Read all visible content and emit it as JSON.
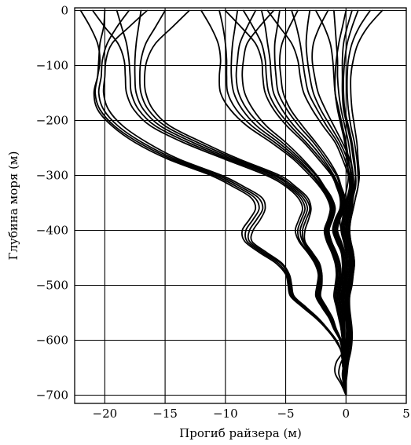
{
  "chart_data": {
    "type": "line",
    "title": "",
    "xlabel": "Прогиб райзера (м)",
    "ylabel": "Глубина моря (м)",
    "xlim": [
      -22.5,
      5
    ],
    "ylim": [
      -715,
      5
    ],
    "grid": true,
    "legend": "none",
    "line_color": "#000000",
    "x_ticks": [
      -20,
      -15,
      -10,
      -5,
      0,
      5
    ],
    "x_tick_labels": [
      "−20",
      "−15",
      "−10",
      "−5",
      "0",
      "5"
    ],
    "y_ticks": [
      0,
      -100,
      -200,
      -300,
      -400,
      -500,
      -600,
      -700
    ],
    "y_tick_labels": [
      "0",
      "−100",
      "−200",
      "−300",
      "−400",
      "−500",
      "−600",
      "−700"
    ],
    "depth_points": [
      0,
      -30,
      -60,
      -90,
      -120,
      -150,
      -180,
      -210,
      -240,
      -270,
      -300,
      -320,
      -340,
      -360,
      -380,
      -400,
      -420,
      -440,
      -460,
      -480,
      -500,
      -520,
      -540,
      -560,
      -580,
      -600,
      -620,
      -640,
      -660,
      -680,
      -700
    ],
    "series": [
      {
        "top_x": -22,
        "values": [
          -22,
          -21.2,
          -20.6,
          -20.4,
          -20.6,
          -20.9,
          -20.6,
          -19.4,
          -17.5,
          -14.8,
          -11.2,
          -9.4,
          -7.9,
          -7.5,
          -8.0,
          -8.6,
          -8.4,
          -7.2,
          -5.8,
          -5.0,
          -4.8,
          -4.6,
          -3.6,
          -2.5,
          -1.6,
          -0.9,
          -0.4,
          -0.3,
          -0.2,
          -0.1,
          0
        ]
      },
      {
        "top_x": -20,
        "values": [
          -20,
          -20.1,
          -20.4,
          -20.5,
          -20.6,
          -20.8,
          -20.4,
          -19.2,
          -17.2,
          -14.5,
          -10.9,
          -9.1,
          -7.6,
          -7.2,
          -7.7,
          -8.3,
          -8.2,
          -7.0,
          -5.6,
          -4.9,
          -4.7,
          -4.5,
          -3.5,
          -2.4,
          -1.6,
          -0.8,
          -0.4,
          -0.3,
          -0.2,
          -0.1,
          0
        ]
      },
      {
        "top_x": -18,
        "values": [
          -18,
          -19.0,
          -19.8,
          -20.2,
          -20.3,
          -20.5,
          -20.1,
          -18.9,
          -16.9,
          -14.2,
          -10.6,
          -8.8,
          -7.3,
          -6.9,
          -7.4,
          -8.0,
          -8.0,
          -6.8,
          -5.4,
          -4.8,
          -4.6,
          -4.4,
          -3.4,
          -2.3,
          -1.5,
          -0.8,
          -0.4,
          -0.3,
          -0.2,
          -0.1,
          0
        ]
      },
      {
        "top_x": -16.5,
        "values": [
          -16.5,
          -18.0,
          -19.4,
          -19.9,
          -20.0,
          -20.1,
          -19.7,
          -18.5,
          -16.5,
          -13.9,
          -10.3,
          -8.5,
          -7.0,
          -6.7,
          -7.1,
          -7.7,
          -7.8,
          -6.6,
          -5.3,
          -4.7,
          -4.5,
          -4.3,
          -3.3,
          -2.3,
          -1.5,
          -0.8,
          -0.4,
          -0.3,
          -0.2,
          -0.1,
          0
        ]
      },
      {
        "top_x": -21,
        "values": [
          -21,
          -20.0,
          -18.9,
          -18.4,
          -18.3,
          -18.2,
          -17.6,
          -16.2,
          -13.5,
          -10.1,
          -6.6,
          -5.0,
          -4.0,
          -3.6,
          -3.9,
          -4.2,
          -3.9,
          -3.2,
          -2.6,
          -2.3,
          -2.4,
          -2.5,
          -2.0,
          -1.4,
          -1.0,
          -0.5,
          -0.3,
          -0.2,
          -0.1,
          -0.1,
          0
        ]
      },
      {
        "top_x": -19,
        "values": [
          -19,
          -18.6,
          -18.2,
          -18.0,
          -17.9,
          -17.8,
          -17.2,
          -15.8,
          -13.1,
          -9.8,
          -6.3,
          -4.8,
          -3.8,
          -3.4,
          -3.7,
          -4.0,
          -3.8,
          -3.1,
          -2.5,
          -2.2,
          -2.3,
          -2.4,
          -1.9,
          -1.3,
          -0.9,
          -0.5,
          -0.3,
          -0.2,
          -0.1,
          -0.1,
          0
        ]
      },
      {
        "top_x": -17,
        "values": [
          -17,
          -17.2,
          -17.4,
          -17.5,
          -17.5,
          -17.4,
          -16.8,
          -15.4,
          -12.7,
          -9.5,
          -6.0,
          -4.6,
          -3.6,
          -3.2,
          -3.5,
          -3.8,
          -3.6,
          -3.0,
          -2.4,
          -2.1,
          -2.2,
          -2.3,
          -1.8,
          -1.3,
          -0.9,
          -0.5,
          -0.3,
          -0.2,
          -0.1,
          -0.1,
          0
        ]
      },
      {
        "top_x": -15,
        "values": [
          -15,
          -15.8,
          -16.6,
          -17.0,
          -17.1,
          -17.0,
          -16.4,
          -15.0,
          -12.3,
          -9.2,
          -5.8,
          -4.4,
          -3.4,
          -3.0,
          -3.3,
          -3.6,
          -3.5,
          -2.9,
          -2.3,
          -2.0,
          -2.1,
          -2.2,
          -1.7,
          -1.2,
          -0.8,
          -0.4,
          -0.2,
          -0.2,
          -0.1,
          -0.1,
          0
        ]
      },
      {
        "top_x": -13,
        "values": [
          -13,
          -14.4,
          -15.8,
          -16.5,
          -16.7,
          -16.6,
          -16.0,
          -14.6,
          -11.9,
          -8.9,
          -5.5,
          -4.2,
          -3.2,
          -2.9,
          -3.1,
          -3.4,
          -3.4,
          -2.8,
          -2.2,
          -2.0,
          -2.0,
          -2.1,
          -1.6,
          -1.1,
          -0.8,
          -0.4,
          -0.2,
          -0.2,
          -0.1,
          -0.1,
          0
        ]
      },
      {
        "top_x": -12,
        "values": [
          -12,
          -11.2,
          -10.6,
          -10.4,
          -10.5,
          -10.4,
          -9.6,
          -8.2,
          -6.2,
          -4.4,
          -3.0,
          -2.2,
          -1.6,
          -1.3,
          -1.5,
          -1.8,
          -1.6,
          -1.2,
          -0.9,
          -0.8,
          -0.9,
          -1.0,
          -0.8,
          -0.6,
          -0.4,
          -0.3,
          -0.2,
          -0.1,
          -0.1,
          -0.1,
          0
        ]
      },
      {
        "top_x": -10.5,
        "values": [
          -10.5,
          -10.2,
          -10.0,
          -9.9,
          -9.9,
          -9.8,
          -9.1,
          -7.8,
          -5.9,
          -4.2,
          -2.8,
          -2.1,
          -1.5,
          -1.2,
          -1.4,
          -1.7,
          -1.5,
          -1.1,
          -0.8,
          -0.7,
          -0.8,
          -0.9,
          -0.7,
          -0.5,
          -0.4,
          -0.3,
          -0.2,
          -0.1,
          -0.1,
          -0.1,
          0
        ]
      },
      {
        "top_x": -9,
        "values": [
          -9,
          -9.2,
          -9.4,
          -9.5,
          -9.5,
          -9.3,
          -8.6,
          -7.4,
          -5.6,
          -4.0,
          -2.7,
          -2.0,
          -1.4,
          -1.1,
          -1.3,
          -1.6,
          -1.4,
          -1.0,
          -0.7,
          -0.6,
          -0.7,
          -0.8,
          -0.7,
          -0.5,
          -0.4,
          -0.2,
          -0.1,
          -0.1,
          -0.1,
          0,
          0
        ]
      },
      {
        "top_x": -7.5,
        "values": [
          -7.5,
          -8.2,
          -8.8,
          -9.0,
          -9.1,
          -8.9,
          -8.2,
          -7.0,
          -5.3,
          -3.8,
          -2.5,
          -1.9,
          -1.3,
          -1.0,
          -1.2,
          -1.5,
          -1.3,
          -0.9,
          -0.6,
          -0.5,
          -0.6,
          -0.7,
          -0.6,
          -0.4,
          -0.3,
          -0.2,
          -0.1,
          -0.1,
          -0.1,
          0,
          0
        ]
      },
      {
        "top_x": -6,
        "values": [
          -6,
          -7.2,
          -8.2,
          -8.5,
          -8.6,
          -8.4,
          -7.7,
          -6.6,
          -5.0,
          -3.6,
          -2.4,
          -1.8,
          -1.2,
          -0.9,
          -1.1,
          -1.4,
          -1.2,
          -0.8,
          -0.5,
          -0.4,
          -0.5,
          -0.6,
          -0.5,
          -0.4,
          -0.3,
          -0.2,
          -0.1,
          -0.1,
          0,
          0,
          0
        ]
      },
      {
        "top_x": -10,
        "values": [
          -10,
          -8.7,
          -7.5,
          -7.0,
          -6.9,
          -6.7,
          -6.0,
          -4.9,
          -3.5,
          -2.3,
          -1.2,
          -0.8,
          -0.5,
          -0.5,
          -0.9,
          -1.1,
          -0.8,
          -0.4,
          -0.3,
          -0.3,
          -0.5,
          -0.6,
          -0.4,
          -0.3,
          -0.2,
          -0.2,
          -0.1,
          -0.1,
          -0.1,
          0,
          0
        ]
      },
      {
        "top_x": -8.5,
        "values": [
          -8.5,
          -7.7,
          -7.0,
          -6.7,
          -6.6,
          -6.4,
          -5.7,
          -4.6,
          -3.3,
          -2.1,
          -1.1,
          -0.7,
          -0.4,
          -0.4,
          -0.8,
          -1.0,
          -0.7,
          -0.3,
          -0.2,
          -0.2,
          -0.4,
          -0.5,
          -0.4,
          -0.3,
          -0.2,
          -0.1,
          -0.1,
          -0.1,
          0,
          0,
          0
        ]
      },
      {
        "top_x": -7,
        "values": [
          -7,
          -6.7,
          -6.5,
          -6.3,
          -6.2,
          -6.0,
          -5.3,
          -4.3,
          -3.0,
          -1.9,
          -1.0,
          -0.6,
          -0.3,
          -0.3,
          -0.7,
          -0.9,
          -0.6,
          -0.3,
          -0.2,
          -0.2,
          -0.3,
          -0.4,
          -0.3,
          -0.2,
          -0.2,
          -0.1,
          -0.1,
          -0.1,
          0,
          0,
          0
        ]
      },
      {
        "top_x": -5.5,
        "values": [
          -5.5,
          -5.7,
          -5.9,
          -5.9,
          -5.8,
          -5.6,
          -4.9,
          -3.9,
          -2.7,
          -1.7,
          -0.8,
          -0.5,
          -0.2,
          -0.2,
          -0.6,
          -0.8,
          -0.5,
          -0.2,
          -0.1,
          -0.1,
          -0.2,
          -0.3,
          -0.3,
          -0.2,
          -0.1,
          -0.1,
          -0.1,
          0,
          0,
          0,
          0
        ]
      },
      {
        "top_x": -4,
        "values": [
          -4,
          -4.7,
          -5.3,
          -5.5,
          -5.4,
          -5.2,
          -4.6,
          -3.6,
          -2.5,
          -1.5,
          -0.7,
          -0.4,
          -0.1,
          -0.1,
          -0.5,
          -0.7,
          -0.4,
          -0.1,
          0,
          0,
          -0.1,
          -0.2,
          -0.2,
          -0.1,
          -0.1,
          -0.1,
          0,
          0,
          0,
          0,
          0
        ]
      },
      {
        "top_x": -6.5,
        "values": [
          -6.5,
          -5.5,
          -4.5,
          -4.0,
          -3.8,
          -3.5,
          -2.8,
          -1.9,
          -0.9,
          -0.3,
          0.2,
          0.3,
          0.1,
          -0.1,
          -0.3,
          -0.4,
          -0.2,
          0.1,
          0.2,
          0.1,
          -0.1,
          -0.2,
          -0.1,
          0,
          0.1,
          0,
          -0.1,
          0,
          0,
          0,
          0
        ]
      },
      {
        "top_x": -4.5,
        "values": [
          -4.5,
          -4.1,
          -3.8,
          -3.6,
          -3.4,
          -3.1,
          -2.4,
          -1.6,
          -0.7,
          -0.1,
          0.3,
          0.4,
          0.2,
          0,
          -0.2,
          -0.3,
          -0.1,
          0.2,
          0.3,
          0.2,
          0,
          -0.1,
          0,
          0.1,
          0.1,
          0.1,
          0,
          0,
          0,
          0,
          0
        ]
      },
      {
        "top_x": -3,
        "values": [
          -3,
          -3.2,
          -3.3,
          -3.2,
          -3.0,
          -2.7,
          -2.1,
          -1.3,
          -0.5,
          0.1,
          0.5,
          0.5,
          0.3,
          0.1,
          -0.1,
          -0.2,
          0,
          0.3,
          0.4,
          0.3,
          0.1,
          0,
          0.1,
          0.2,
          0.2,
          0.1,
          0.1,
          0,
          0,
          0,
          0
        ]
      },
      {
        "top_x": -1.5,
        "values": [
          -1.5,
          -2.2,
          -2.7,
          -2.8,
          -2.6,
          -2.3,
          -1.7,
          -1.0,
          -0.3,
          0.3,
          0.6,
          0.6,
          0.4,
          0.2,
          0,
          -0.1,
          0.1,
          0.4,
          0.5,
          0.4,
          0.2,
          0.1,
          0.2,
          0.3,
          0.3,
          0.2,
          0.1,
          0.1,
          0,
          0,
          0
        ]
      },
      {
        "top_x": -2.5,
        "values": [
          -2.5,
          -1.8,
          -1.3,
          -1.1,
          -1.0,
          -0.9,
          -0.6,
          -0.3,
          0,
          0.2,
          0.4,
          0.5,
          0.4,
          0.3,
          0.1,
          0,
          0.1,
          0.3,
          0.4,
          0.3,
          0.2,
          0,
          -0.1,
          0,
          0.1,
          0.2,
          0.1,
          0,
          -0.2,
          -0.1,
          0
        ]
      },
      {
        "top_x": -1,
        "values": [
          -1,
          -0.9,
          -0.8,
          -0.7,
          -0.7,
          -0.6,
          -0.4,
          -0.1,
          0.2,
          0.4,
          0.6,
          0.6,
          0.5,
          0.4,
          0.2,
          0.1,
          0.2,
          0.4,
          0.5,
          0.4,
          0.3,
          0.1,
          0,
          0.1,
          0.2,
          0.3,
          0.2,
          0.1,
          -0.1,
          0,
          0
        ]
      },
      {
        "top_x": 0.5,
        "values": [
          0.5,
          0.1,
          -0.2,
          -0.3,
          -0.3,
          -0.3,
          -0.2,
          0.1,
          0.4,
          0.6,
          0.8,
          0.8,
          0.6,
          0.5,
          0.3,
          0.2,
          0.3,
          0.5,
          0.6,
          0.5,
          0.4,
          0.2,
          0.1,
          0.2,
          0.3,
          0.4,
          0.3,
          0.2,
          0,
          0,
          0
        ]
      },
      {
        "top_x": 2,
        "values": [
          2,
          1.1,
          0.5,
          0.2,
          0.1,
          0.1,
          0.2,
          0.4,
          0.7,
          0.9,
          1.0,
          1.0,
          0.8,
          0.6,
          0.4,
          0.3,
          0.4,
          0.6,
          0.7,
          0.6,
          0.5,
          0.3,
          0.2,
          0.3,
          0.4,
          0.5,
          0.4,
          0.2,
          0.1,
          0,
          0
        ]
      },
      {
        "top_x": 0,
        "values": [
          0,
          -0.3,
          -0.6,
          -0.8,
          -0.9,
          -0.9,
          -0.7,
          -0.4,
          -0.1,
          0.1,
          0.2,
          0.1,
          -0.1,
          -0.3,
          -0.5,
          -0.4,
          -0.2,
          0,
          0.1,
          0,
          -0.2,
          -0.3,
          -0.2,
          0,
          0.1,
          0.1,
          -0.2,
          -0.8,
          -0.9,
          -0.4,
          0
        ]
      },
      {
        "top_x": 1,
        "values": [
          1,
          0.5,
          0.1,
          -0.1,
          -0.2,
          -0.2,
          -0.1,
          0.2,
          0.5,
          0.7,
          0.8,
          0.7,
          0.5,
          0.3,
          0.1,
          0.1,
          0.2,
          0.4,
          0.5,
          0.4,
          0.2,
          0.1,
          0.1,
          0.2,
          0.3,
          0.3,
          0.1,
          -0.4,
          -0.6,
          -0.3,
          0
        ]
      },
      {
        "top_x": 3,
        "values": [
          3,
          1.8,
          1.0,
          0.6,
          0.4,
          0.4,
          0.5,
          0.7,
          0.9,
          1.0,
          1.1,
          1.0,
          0.8,
          0.6,
          0.4,
          0.3,
          0.4,
          0.6,
          0.7,
          0.6,
          0.4,
          0.3,
          0.3,
          0.4,
          0.5,
          0.5,
          0.3,
          -0.1,
          -0.3,
          -0.2,
          0
        ]
      }
    ]
  }
}
